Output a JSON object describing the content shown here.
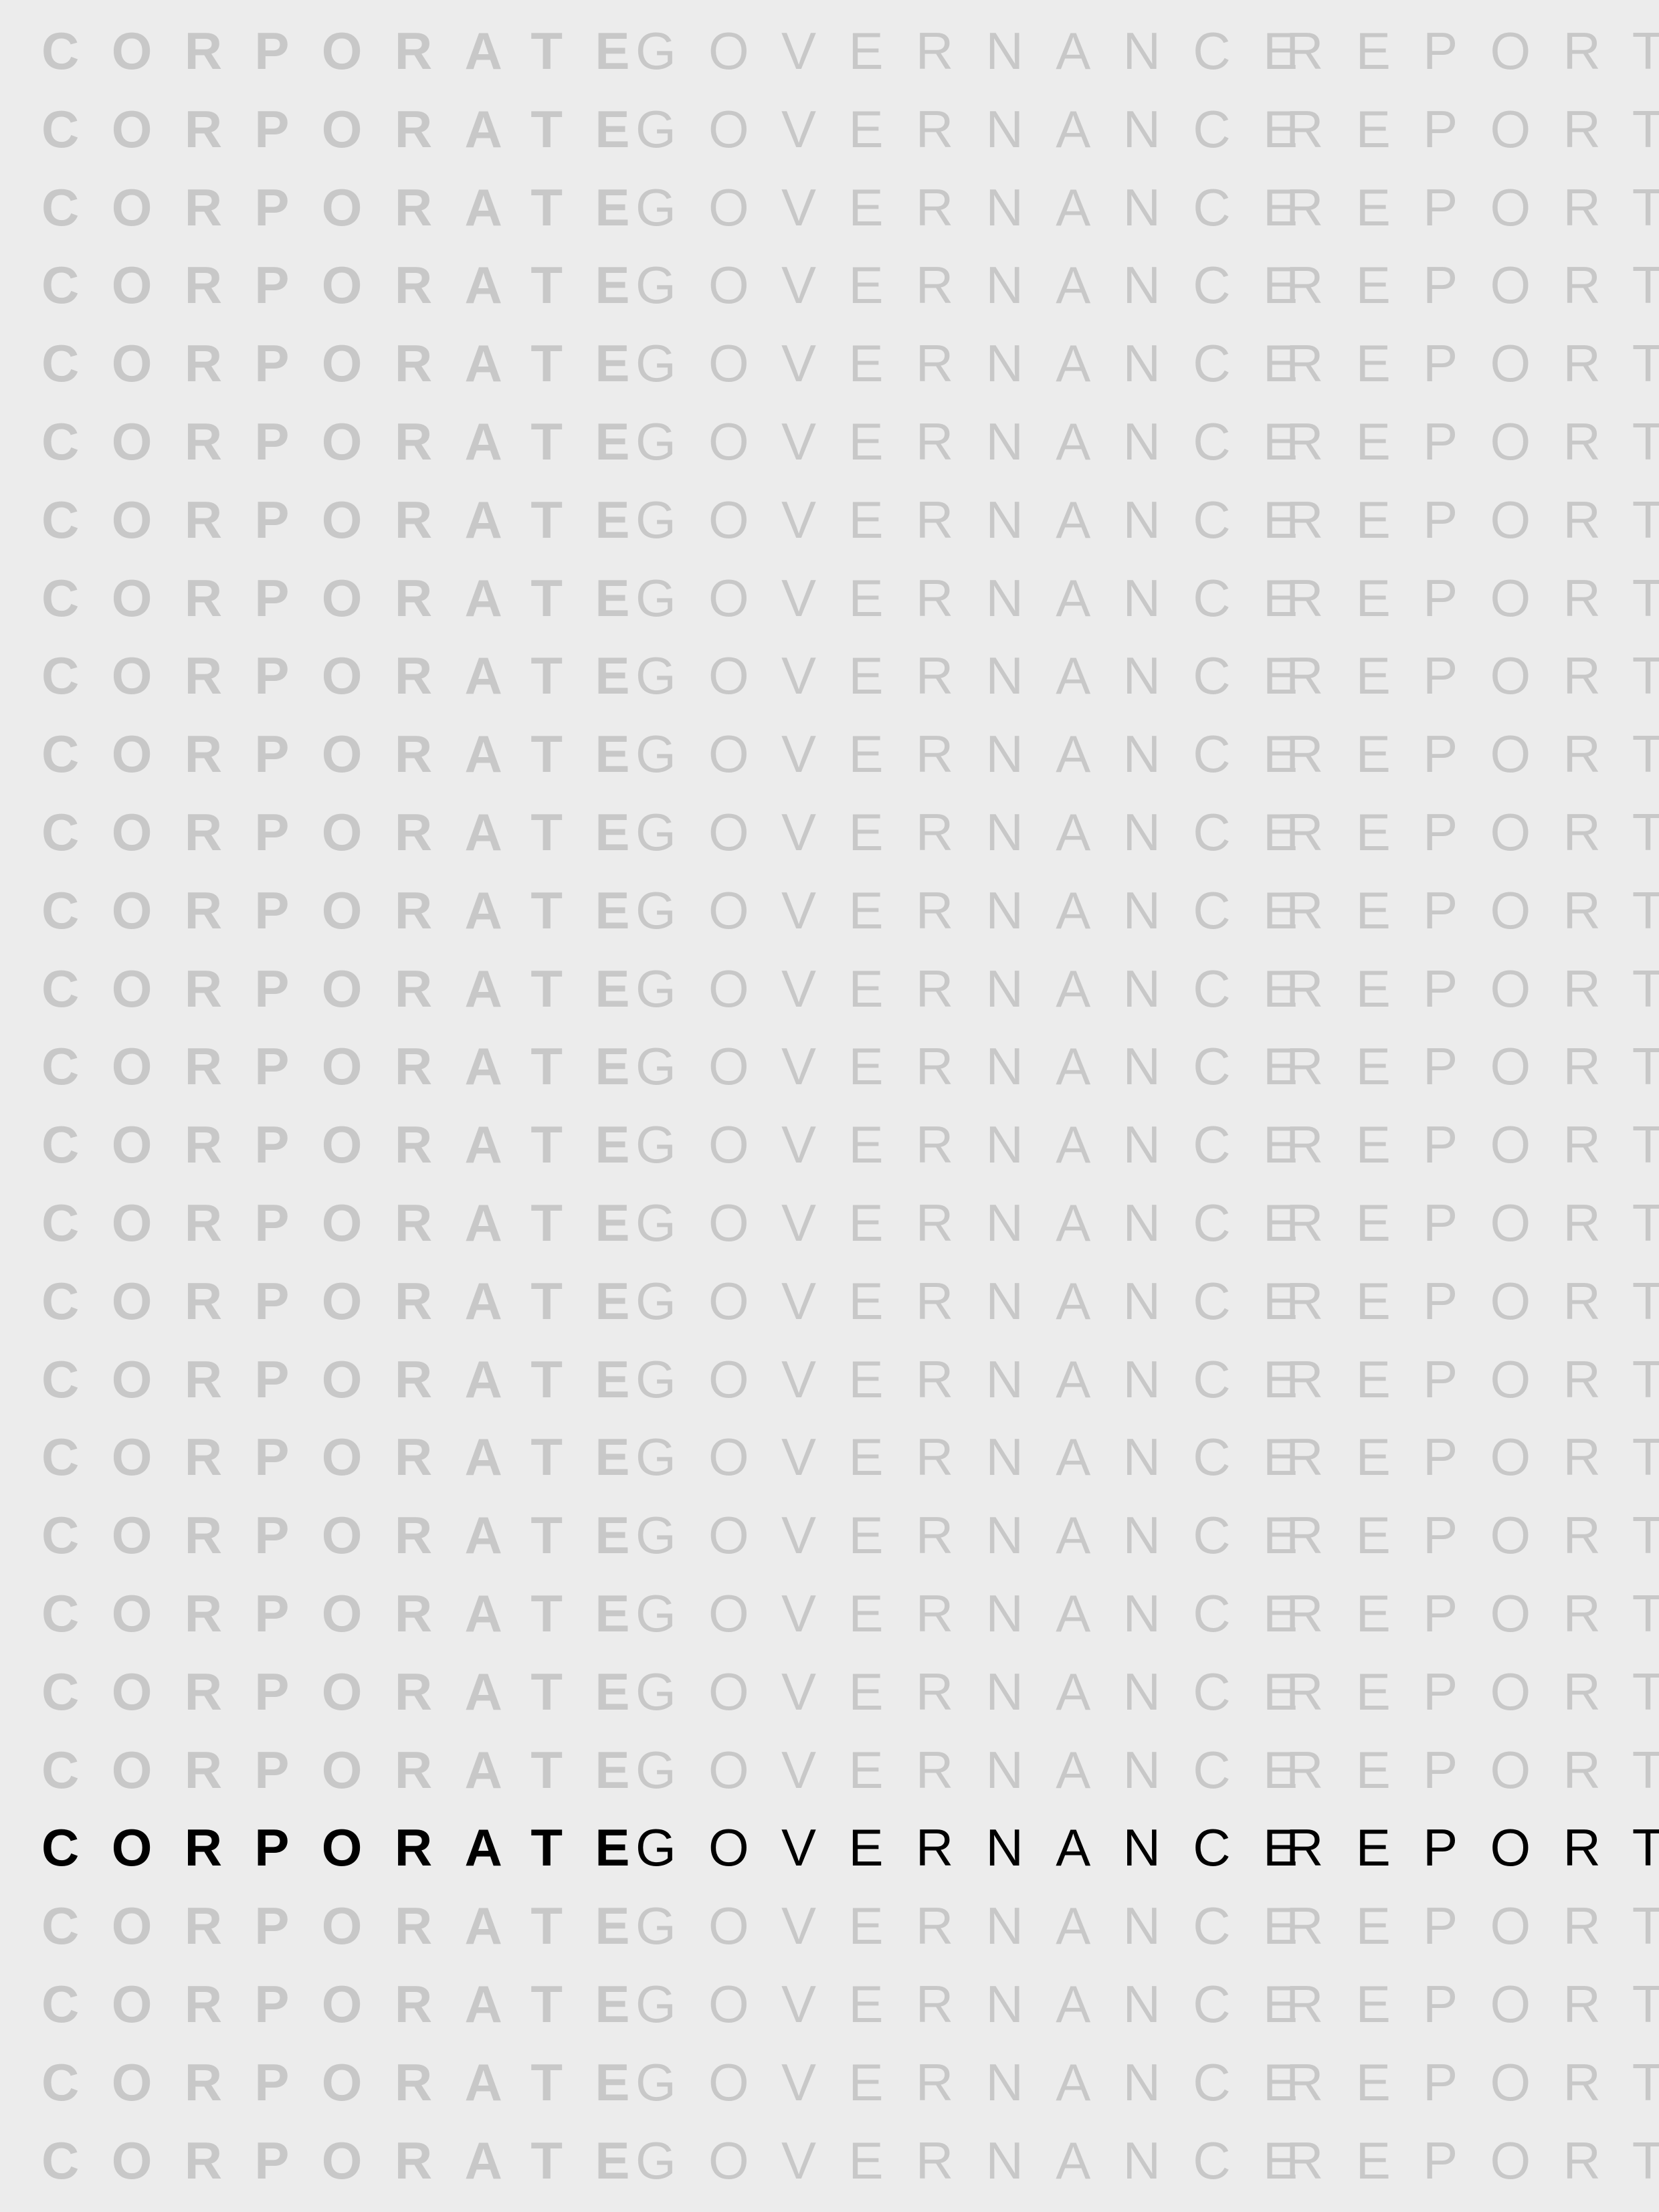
{
  "rows": [
    {
      "w1": "CORPORATE",
      "w2": "GOVERNANCE",
      "w3": "REPORT"
    },
    {
      "w1": "CORPORATE",
      "w2": "GOVERNANCE",
      "w3": "REPORT"
    },
    {
      "w1": "CORPORATE",
      "w2": "GOVERNANCE",
      "w3": "REPORT"
    },
    {
      "w1": "CORPORATE",
      "w2": "GOVERNANCE",
      "w3": "REPORT"
    },
    {
      "w1": "CORPORATE",
      "w2": "GOVERNANCE",
      "w3": "REPORT"
    },
    {
      "w1": "CORPORATE",
      "w2": "GOVERNANCE",
      "w3": "REPORT"
    },
    {
      "w1": "CORPORATE",
      "w2": "GOVERNANCE",
      "w3": "REPORT"
    },
    {
      "w1": "CORPORATE",
      "w2": "GOVERNANCE",
      "w3": "REPORT"
    },
    {
      "w1": "CORPORATE",
      "w2": "GOVERNANCE",
      "w3": "REPORT"
    },
    {
      "w1": "CORPORATE",
      "w2": "GOVERNANCE",
      "w3": "REPORT"
    },
    {
      "w1": "CORPORATE",
      "w2": "GOVERNANCE",
      "w3": "REPORT"
    },
    {
      "w1": "CORPORATE",
      "w2": "GOVERNANCE",
      "w3": "REPORT"
    },
    {
      "w1": "CORPORATE",
      "w2": "GOVERNANCE",
      "w3": "REPORT"
    },
    {
      "w1": "CORPORATE",
      "w2": "GOVERNANCE",
      "w3": "REPORT"
    },
    {
      "w1": "CORPORATE",
      "w2": "GOVERNANCE",
      "w3": "REPORT"
    },
    {
      "w1": "CORPORATE",
      "w2": "GOVERNANCE",
      "w3": "REPORT"
    },
    {
      "w1": "CORPORATE",
      "w2": "GOVERNANCE",
      "w3": "REPORT"
    },
    {
      "w1": "CORPORATE",
      "w2": "GOVERNANCE",
      "w3": "REPORT"
    },
    {
      "w1": "CORPORATE",
      "w2": "GOVERNANCE",
      "w3": "REPORT"
    },
    {
      "w1": "CORPORATE",
      "w2": "GOVERNANCE",
      "w3": "REPORT"
    },
    {
      "w1": "CORPORATE",
      "w2": "GOVERNANCE",
      "w3": "REPORT"
    },
    {
      "w1": "CORPORATE",
      "w2": "GOVERNANCE",
      "w3": "REPORT"
    },
    {
      "w1": "CORPORATE",
      "w2": "GOVERNANCE",
      "w3": "REPORT"
    },
    {
      "w1": "CORPORATE",
      "w2": "GOVERNANCE",
      "w3": "REPORT",
      "highlight": true
    },
    {
      "w1": "CORPORATE",
      "w2": "GOVERNANCE",
      "w3": "REPORT"
    },
    {
      "w1": "CORPORATE",
      "w2": "GOVERNANCE",
      "w3": "REPORT"
    },
    {
      "w1": "CORPORATE",
      "w2": "GOVERNANCE",
      "w3": "REPORT"
    },
    {
      "w1": "CORPORATE",
      "w2": "GOVERNANCE",
      "w3": "REPORT"
    }
  ],
  "colors": {
    "background": "#ececec",
    "faded_text": "#c8c8c8",
    "highlight_text": "#000000"
  }
}
